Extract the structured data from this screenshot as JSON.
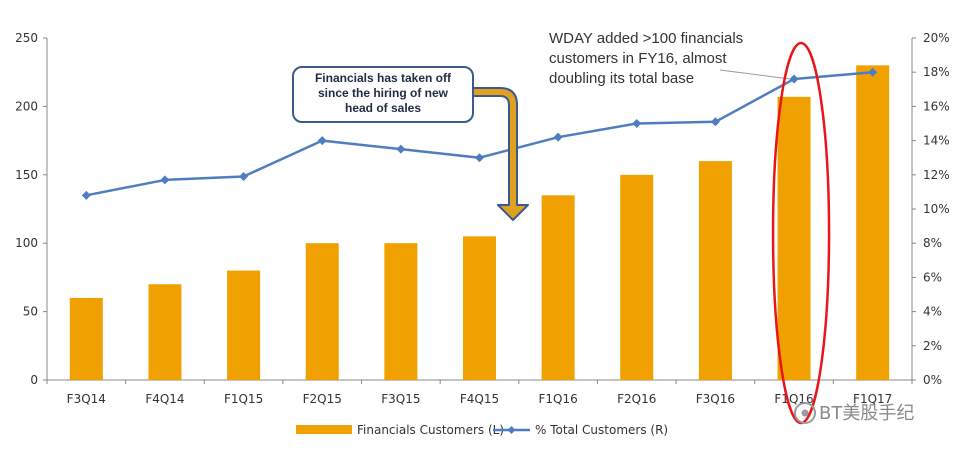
{
  "chart_data": {
    "type": "bar",
    "categories": [
      "F3Q14",
      "F4Q14",
      "F1Q15",
      "F2Q15",
      "F3Q15",
      "F4Q15",
      "F1Q16",
      "F2Q16",
      "F3Q16",
      "F1Q16",
      "F1Q17"
    ],
    "series": [
      {
        "name": "Financials Customers (L)",
        "type": "bar",
        "axis": "left",
        "color": "#f0a000",
        "values": [
          60,
          70,
          80,
          100,
          100,
          105,
          135,
          150,
          160,
          207,
          230
        ]
      },
      {
        "name": "% Total Customers (R)",
        "type": "line",
        "axis": "right",
        "color": "#4f7ec0",
        "values": [
          10.8,
          11.7,
          11.9,
          14.0,
          13.5,
          13.0,
          14.2,
          15.0,
          15.1,
          17.6,
          18.0
        ]
      }
    ],
    "y_left": {
      "min": 0,
      "max": 250,
      "ticks": [
        "0",
        "50",
        "100",
        "150",
        "200",
        "250"
      ]
    },
    "y_right": {
      "min": 0,
      "max": 20,
      "ticks": [
        "0%",
        "2%",
        "4%",
        "6%",
        "8%",
        "10%",
        "12%",
        "14%",
        "16%",
        "18%",
        "20%"
      ]
    },
    "legend": {
      "position": "bottom-center",
      "bar_label": "Financials Customers (L)",
      "line_label": "% Total Customers (R)"
    },
    "annotations": {
      "callout": [
        "Financials has taken off",
        "since the hiring of new",
        "head of sales"
      ],
      "note": [
        "WDAY added >100 financials",
        "customers in FY16, almost",
        "doubling its total base"
      ],
      "highlight_category_index": 9
    }
  },
  "watermark": {
    "text": "BT美股手纪"
  },
  "colors": {
    "bar": "#f0a000",
    "line": "#4f7ec0",
    "highlight": "#e8161b",
    "callout_border": "#3b5b8c",
    "arrow": "#e0a020"
  }
}
